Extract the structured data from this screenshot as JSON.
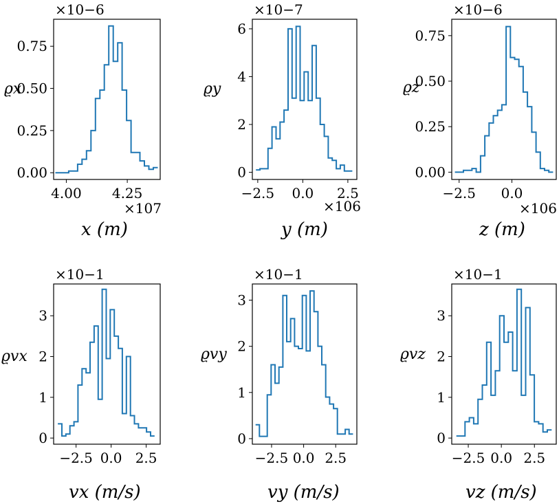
{
  "chart_data": [
    {
      "type": "histogram",
      "ylabel": "ϱx",
      "xlabel": "x (m)",
      "y_multiplier": "×10−6",
      "x_multiplier": "×107",
      "x_range": [
        3.948,
        4.385
      ],
      "y_range": [
        -0.04,
        0.91
      ],
      "x_ticks": [
        {
          "v": 4.0,
          "label": "4.00"
        },
        {
          "v": 4.25,
          "label": "4.25"
        }
      ],
      "y_ticks": [
        {
          "v": 0.0,
          "label": "0.00"
        },
        {
          "v": 0.25,
          "label": "0.25"
        },
        {
          "v": 0.5,
          "label": "0.50"
        },
        {
          "v": 0.75,
          "label": "0.75"
        }
      ],
      "x_start": 3.955,
      "x_end": 4.375,
      "values": [
        0.0,
        0.0,
        0.0,
        0.01,
        0.01,
        0.05,
        0.08,
        0.13,
        0.25,
        0.44,
        0.49,
        0.64,
        0.87,
        0.66,
        0.77,
        0.49,
        0.31,
        0.12,
        0.12,
        0.07,
        0.04,
        0.02,
        0.03
      ]
    },
    {
      "type": "histogram",
      "ylabel": "ϱy",
      "xlabel": "y (m)",
      "y_multiplier": "×10−7",
      "x_multiplier": "×106",
      "x_range": [
        -2.8,
        3.0
      ],
      "y_range": [
        -0.3,
        6.4
      ],
      "x_ticks": [
        {
          "v": -2.5,
          "label": "−2.5"
        },
        {
          "v": 0.0,
          "label": "0.0"
        },
        {
          "v": 2.5,
          "label": "2.5"
        }
      ],
      "y_ticks": [
        {
          "v": 0,
          "label": "0"
        },
        {
          "v": 2,
          "label": "2"
        },
        {
          "v": 4,
          "label": "4"
        },
        {
          "v": 6,
          "label": "6"
        }
      ],
      "x_start": -2.6,
      "x_end": 2.75,
      "values": [
        0.1,
        0.15,
        0.15,
        1.0,
        1.9,
        1.4,
        2.1,
        2.6,
        6.0,
        3.1,
        6.1,
        3.0,
        4.2,
        3.0,
        5.3,
        3.1,
        2.0,
        1.5,
        0.6,
        0.5,
        0.15,
        0.3,
        0.05,
        0.05
      ]
    },
    {
      "type": "histogram",
      "ylabel": "ϱz",
      "xlabel": "z (m)",
      "y_multiplier": "×10−6",
      "x_multiplier": "×106",
      "x_range": [
        -2.85,
        2.1
      ],
      "y_range": [
        -0.04,
        0.84
      ],
      "x_ticks": [
        {
          "v": -2.5,
          "label": "−2.5"
        },
        {
          "v": 0.0,
          "label": "0.0"
        }
      ],
      "y_ticks": [
        {
          "v": 0.0,
          "label": "0.00"
        },
        {
          "v": 0.25,
          "label": "0.25"
        },
        {
          "v": 0.5,
          "label": "0.50"
        },
        {
          "v": 0.75,
          "label": "0.75"
        }
      ],
      "x_start": -2.7,
      "x_end": 1.95,
      "values": [
        0.0,
        0.0,
        0.01,
        0.01,
        0.02,
        0.0,
        0.09,
        0.2,
        0.27,
        0.31,
        0.34,
        0.37,
        0.8,
        0.63,
        0.62,
        0.58,
        0.44,
        0.36,
        0.22,
        0.11,
        0.02,
        0.01,
        0.0
      ]
    },
    {
      "type": "histogram",
      "ylabel": "ϱvx",
      "xlabel": "vx (m/s)",
      "y_multiplier": "×10−1",
      "x_multiplier": "",
      "x_range": [
        -4.1,
        3.5
      ],
      "y_range": [
        -0.15,
        3.78
      ],
      "x_ticks": [
        {
          "v": -2.5,
          "label": "−2.5"
        },
        {
          "v": 0.0,
          "label": "0.0"
        },
        {
          "v": 2.5,
          "label": "2.5"
        }
      ],
      "y_ticks": [
        {
          "v": 0,
          "label": "0"
        },
        {
          "v": 1,
          "label": "1"
        },
        {
          "v": 2,
          "label": "2"
        },
        {
          "v": 3,
          "label": "3"
        }
      ],
      "x_start": -3.8,
      "x_end": 3.1,
      "values": [
        0.35,
        0.05,
        0.1,
        0.3,
        0.4,
        1.3,
        1.7,
        1.6,
        2.35,
        2.75,
        0.95,
        3.65,
        1.95,
        3.15,
        2.5,
        2.2,
        0.6,
        2.0,
        0.55,
        0.35,
        0.25,
        0.25,
        0.15,
        0.05
      ]
    },
    {
      "type": "histogram",
      "ylabel": "ϱvy",
      "xlabel": "vy (m/s)",
      "y_multiplier": "×10−1",
      "x_multiplier": "",
      "x_range": [
        -4.0,
        4.15
      ],
      "y_range": [
        -0.12,
        3.35
      ],
      "x_ticks": [
        {
          "v": -2.5,
          "label": "−2.5"
        },
        {
          "v": 0.0,
          "label": "0.0"
        },
        {
          "v": 2.5,
          "label": "2.5"
        }
      ],
      "y_ticks": [
        {
          "v": 0,
          "label": "0"
        },
        {
          "v": 1,
          "label": "1"
        },
        {
          "v": 2,
          "label": "2"
        },
        {
          "v": 3,
          "label": "3"
        }
      ],
      "x_start": -3.75,
      "x_end": 3.85,
      "values": [
        0.3,
        0.05,
        0.05,
        0.95,
        1.6,
        1.2,
        1.55,
        3.1,
        2.1,
        2.6,
        2.0,
        1.95,
        3.1,
        1.9,
        3.2,
        2.75,
        2.0,
        1.6,
        0.9,
        0.75,
        0.65,
        0.1,
        0.1,
        0.2,
        0.1
      ]
    },
    {
      "type": "histogram",
      "ylabel": "ϱvz",
      "xlabel": "vz (m/s)",
      "y_multiplier": "×10−1",
      "x_multiplier": "",
      "x_range": [
        -3.75,
        4.15
      ],
      "y_range": [
        -0.15,
        3.78
      ],
      "x_ticks": [
        {
          "v": -2.5,
          "label": "−2.5"
        },
        {
          "v": 0.0,
          "label": "0.0"
        },
        {
          "v": 2.5,
          "label": "2.5"
        }
      ],
      "y_ticks": [
        {
          "v": 0,
          "label": "0"
        },
        {
          "v": 1,
          "label": "1"
        },
        {
          "v": 2,
          "label": "2"
        },
        {
          "v": 3,
          "label": "3"
        }
      ],
      "x_start": -3.4,
      "x_end": 3.8,
      "values": [
        0.05,
        0.05,
        0.4,
        0.5,
        0.35,
        0.95,
        1.3,
        2.35,
        1.05,
        1.65,
        3.0,
        2.35,
        2.6,
        1.65,
        3.65,
        1.05,
        3.2,
        1.55,
        0.4,
        0.35,
        0.15,
        0.2
      ]
    }
  ]
}
